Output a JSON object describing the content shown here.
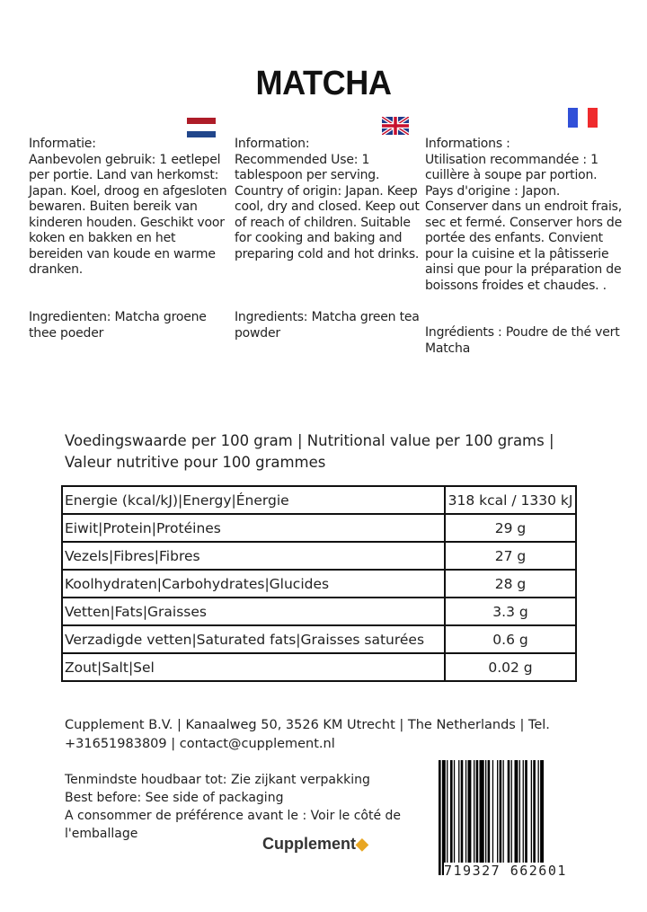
{
  "title": "MATCHA",
  "flags": {
    "nl": "dutch-flag",
    "uk": "uk-flag",
    "fr": "french-flag"
  },
  "columns": [
    {
      "info": "Informatie:\nAanbevolen gebruik: 1 eetlepel per portie. Land van herkomst: Japan. Koel, droog en afgesloten bewaren. Buiten bereik van kinderen houden. Geschikt voor koken en bakken en het bereiden van koude en warme dranken.",
      "ingredients": "Ingredienten: Matcha groene thee poeder"
    },
    {
      "info": "Information:\nRecommended Use: 1 tablespoon per serving. Country of origin: Japan. Keep cool, dry and closed. Keep out of reach of children. Suitable for cooking and baking and preparing cold and hot drinks.",
      "ingredients": "Ingredients: Matcha green tea powder"
    },
    {
      "info": "Informations :\nUtilisation recommandée : 1 cuillère à soupe par portion. Pays d'origine : Japon. Conserver dans un endroit frais, sec et fermé. Conserver hors de portée des enfants. Convient pour la cuisine et la pâtisserie ainsi que pour la préparation de boissons froides et chaudes. .",
      "ingredients": "Ingrédients : Poudre de thé vert Matcha"
    }
  ],
  "nutrition": {
    "heading": "Voedingswaarde per 100 gram | Nutritional value per 100 grams | Valeur nutritive pour 100 grammes",
    "rows": [
      {
        "label": "Energie (kcal/kJ)|Energy|Énergie",
        "value": "318 kcal / 1330 kJ"
      },
      {
        "label": "Eiwit|Protein|Protéines",
        "value": "29 g"
      },
      {
        "label": "Vezels|Fibres|Fibres",
        "value": "27 g"
      },
      {
        "label": "Koolhydraten|Carbohydrates|Glucides",
        "value": "28 g"
      },
      {
        "label": "Vetten|Fats|Graisses",
        "value": "3.3 g"
      },
      {
        "label": "Verzadigde vetten|Saturated fats|Graisses saturées",
        "value": "0.6 g"
      },
      {
        "label": "Zout|Salt|Sel",
        "value": "0.02 g"
      }
    ]
  },
  "address": "Cupplement B.V. | Kanaalweg 50, 3526 KM Utrecht | The Netherlands | Tel. +31651983809 | contact@cupplement.nl",
  "best_before": [
    "Tenmindste houdbaar tot: Zie zijkant verpakking",
    "Best before: See side of packaging",
    "A consommer de préférence avant le : Voir le côté de l'emballage"
  ],
  "logo": {
    "text": "Cupplement",
    "accent": "#e8a623"
  },
  "barcode": "719327 662601",
  "colors": {
    "nl_red": "#ae1c28",
    "nl_blue": "#21468b",
    "fr_blue": "#3150d8",
    "fr_red": "#ef2b2d",
    "uk_blue": "#1f3a8a",
    "uk_red": "#c8102e"
  }
}
